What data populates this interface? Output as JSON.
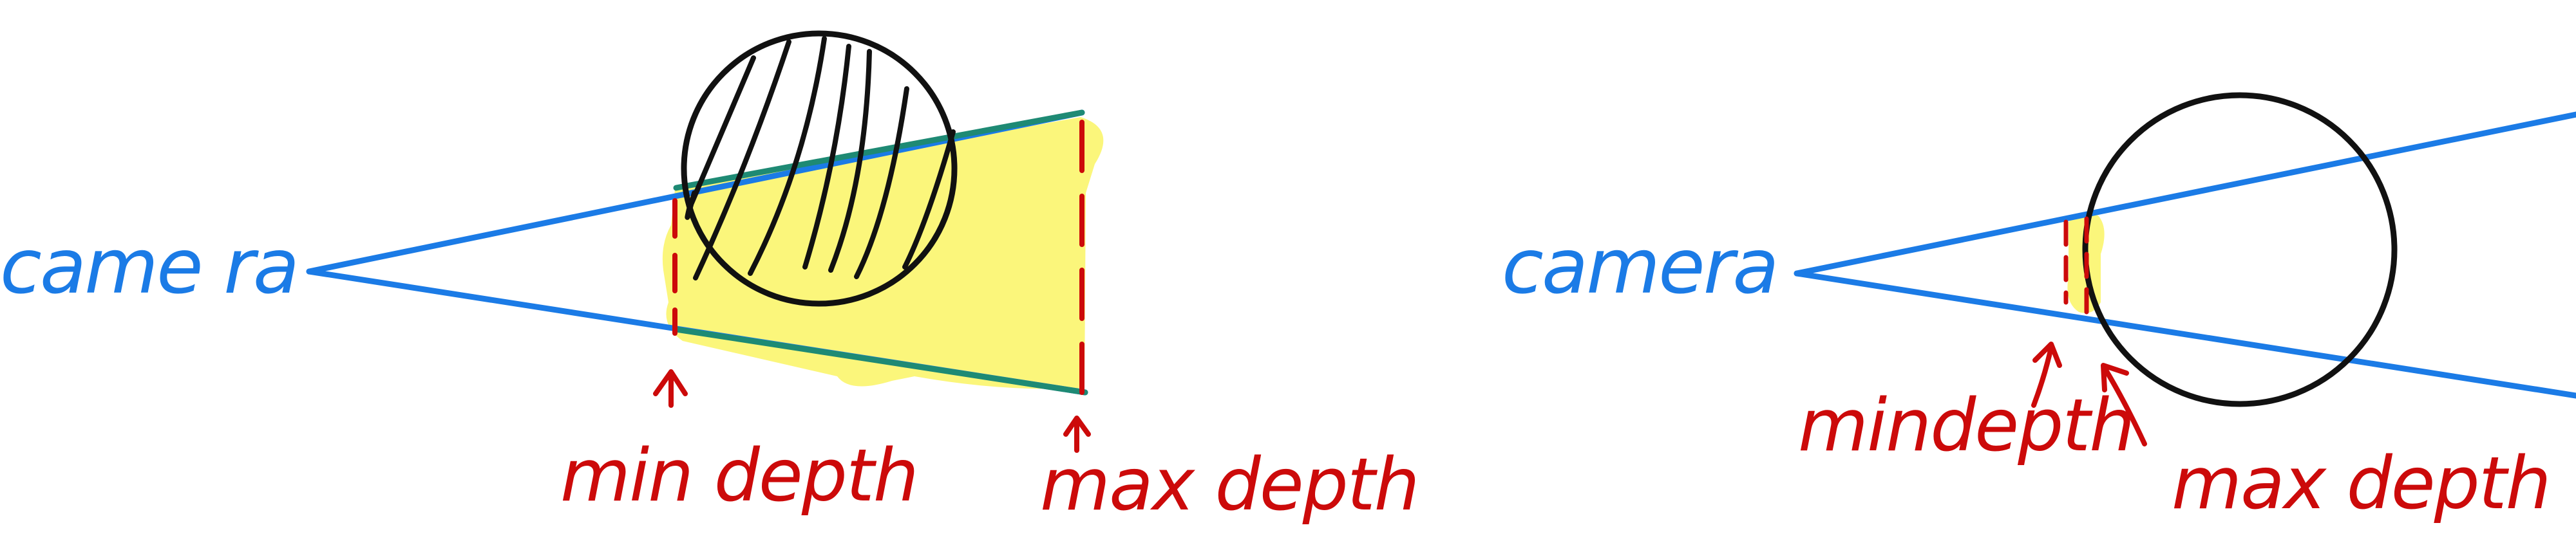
{
  "colors": {
    "frustum_line": "#1b7be6",
    "depth_marker": "#cc0a0a",
    "highlight": "#fbf67b",
    "overlap_line": "#1e8a74",
    "object_outline": "#111111",
    "camera_label": "#1b7be6",
    "depth_label": "#cc0a0a",
    "background": "#ffffff"
  },
  "left_panel": {
    "camera_label": "came ra",
    "min_label": "min depth",
    "max_label": "max depth"
  },
  "right_panel": {
    "camera_label": "camera",
    "min_label": "mindepth",
    "max_label": "max depth"
  }
}
